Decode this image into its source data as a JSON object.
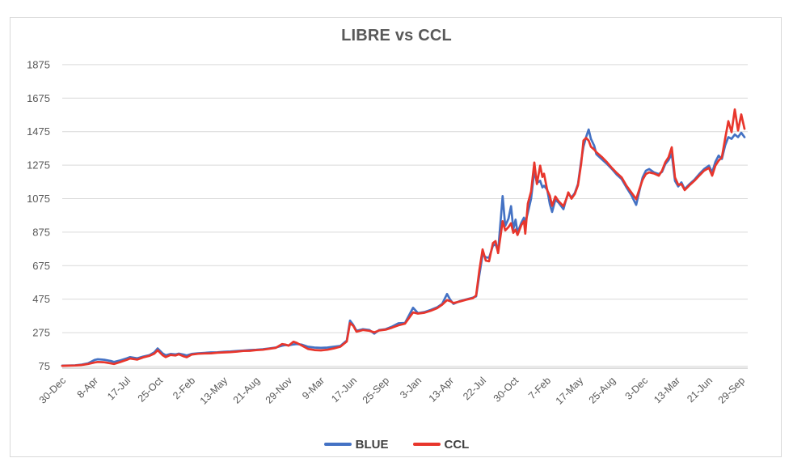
{
  "chart_data": {
    "type": "line",
    "title": "LIBRE vs CCL",
    "xlabel": "",
    "ylabel": "",
    "grid": "horizontal-only",
    "legend": {
      "position": "bottom",
      "entries": [
        "BLUE",
        "CCL"
      ]
    },
    "colors": {
      "grid": "#d9d9d9",
      "axis_line": "#c6c6c6",
      "tick_text": "#595959",
      "title_text": "#595959",
      "legend_text": "#404040",
      "frame_border": "#d9d9d9",
      "background": "#ffffff",
      "blue_series": "#4472c4",
      "red_series": "#e8362c"
    },
    "y_axis": {
      "min": 75,
      "max": 1875,
      "ticks": [
        75,
        275,
        475,
        675,
        875,
        1075,
        1275,
        1475,
        1675,
        1875
      ]
    },
    "x_axis": {
      "tick_interval_days": 100,
      "domain_days": [
        0,
        2110
      ],
      "tick_labels": [
        "30-Dec",
        "8-Apr",
        "17-Jul",
        "25-Oct",
        "2-Feb",
        "13-May",
        "21-Aug",
        "29-Nov",
        "9-Mar",
        "17-Jun",
        "25-Sep",
        "3-Jan",
        "13-Apr",
        "22-Jul",
        "30-Oct",
        "7-Feb",
        "17-May",
        "25-Aug",
        "3-Dec",
        "13-Mar",
        "21-Jun",
        "29-Sep"
      ]
    },
    "x_days": [
      0,
      20,
      40,
      60,
      80,
      100,
      110,
      130,
      150,
      160,
      180,
      200,
      210,
      232,
      250,
      270,
      285,
      295,
      310,
      320,
      335,
      350,
      360,
      375,
      385,
      400,
      420,
      440,
      460,
      480,
      500,
      520,
      540,
      560,
      580,
      600,
      620,
      640,
      660,
      680,
      690,
      700,
      715,
      725,
      740,
      760,
      780,
      800,
      820,
      840,
      860,
      880,
      890,
      900,
      910,
      930,
      950,
      965,
      980,
      1000,
      1020,
      1040,
      1060,
      1085,
      1100,
      1120,
      1140,
      1160,
      1175,
      1190,
      1200,
      1210,
      1230,
      1250,
      1270,
      1280,
      1290,
      1300,
      1310,
      1320,
      1332,
      1340,
      1348,
      1362,
      1370,
      1380,
      1388,
      1395,
      1402,
      1408,
      1420,
      1428,
      1432,
      1440,
      1450,
      1460,
      1468,
      1478,
      1485,
      1490,
      1500,
      1508,
      1515,
      1525,
      1535,
      1550,
      1560,
      1565,
      1575,
      1585,
      1595,
      1605,
      1612,
      1620,
      1628,
      1635,
      1645,
      1652,
      1670,
      1685,
      1700,
      1715,
      1730,
      1745,
      1760,
      1775,
      1785,
      1795,
      1805,
      1815,
      1830,
      1845,
      1855,
      1865,
      1875,
      1885,
      1895,
      1905,
      1915,
      1925,
      1940,
      1955,
      1970,
      1985,
      2000,
      2010,
      2020,
      2030,
      2040,
      2050,
      2060,
      2070,
      2080,
      2090,
      2100,
      2110
    ],
    "series": [
      {
        "name": "BLUE",
        "color": "#4472c4",
        "values": [
          78,
          79,
          80,
          84,
          92,
          112,
          116,
          113,
          106,
          100,
          110,
          122,
          129,
          122,
          132,
          141,
          158,
          181,
          152,
          140,
          148,
          145,
          150,
          144,
          139,
          148,
          152,
          154,
          157,
          158,
          161,
          163,
          166,
          168,
          171,
          173,
          176,
          181,
          186,
          197,
          201,
          199,
          205,
          207,
          204,
          191,
          186,
          184,
          186,
          191,
          196,
          228,
          347,
          321,
          286,
          296,
          291,
          269,
          291,
          296,
          311,
          331,
          333,
          424,
          392,
          398,
          411,
          427,
          447,
          506,
          471,
          447,
          464,
          474,
          484,
          492,
          621,
          741,
          725,
          722,
          795,
          803,
          760,
          1090,
          912,
          955,
          1030,
          893,
          950,
          872,
          932,
          962,
          930,
          992,
          1075,
          1242,
          1168,
          1182,
          1142,
          1152,
          1128,
          1042,
          996,
          1068,
          1052,
          1012,
          1082,
          1105,
          1082,
          1108,
          1162,
          1302,
          1385,
          1442,
          1488,
          1432,
          1392,
          1340,
          1308,
          1282,
          1252,
          1218,
          1192,
          1142,
          1096,
          1038,
          1122,
          1202,
          1242,
          1252,
          1232,
          1222,
          1235,
          1282,
          1305,
          1342,
          1182,
          1148,
          1172,
          1132,
          1162,
          1188,
          1222,
          1252,
          1272,
          1232,
          1295,
          1332,
          1312,
          1392,
          1442,
          1432,
          1458,
          1442,
          1468,
          1442
        ]
      },
      {
        "name": "CCL",
        "color": "#e8362c",
        "values": [
          77,
          78,
          79,
          82,
          88,
          97,
          100,
          98,
          92,
          88,
          100,
          113,
          121,
          114,
          127,
          137,
          150,
          170,
          141,
          129,
          142,
          139,
          146,
          134,
          128,
          144,
          149,
          151,
          152,
          155,
          157,
          159,
          162,
          166,
          167,
          171,
          173,
          179,
          184,
          207,
          204,
          197,
          221,
          214,
          199,
          178,
          171,
          169,
          173,
          181,
          191,
          223,
          332,
          316,
          281,
          291,
          286,
          277,
          288,
          293,
          305,
          319,
          329,
          396,
          389,
          394,
          406,
          422,
          442,
          469,
          463,
          452,
          461,
          472,
          481,
          497,
          648,
          772,
          705,
          701,
          810,
          822,
          750,
          940,
          885,
          905,
          928,
          871,
          890,
          858,
          918,
          940,
          866,
          1046,
          1118,
          1291,
          1162,
          1272,
          1205,
          1224,
          1125,
          1092,
          1032,
          1088,
          1060,
          1030,
          1078,
          1112,
          1075,
          1102,
          1155,
          1285,
          1422,
          1438,
          1422,
          1385,
          1368,
          1352,
          1322,
          1292,
          1258,
          1228,
          1202,
          1152,
          1112,
          1072,
          1132,
          1188,
          1222,
          1232,
          1225,
          1212,
          1242,
          1292,
          1322,
          1382,
          1202,
          1158,
          1162,
          1126,
          1155,
          1182,
          1212,
          1242,
          1258,
          1212,
          1272,
          1302,
          1322,
          1432,
          1538,
          1472,
          1608,
          1482,
          1578,
          1492
        ]
      }
    ]
  }
}
